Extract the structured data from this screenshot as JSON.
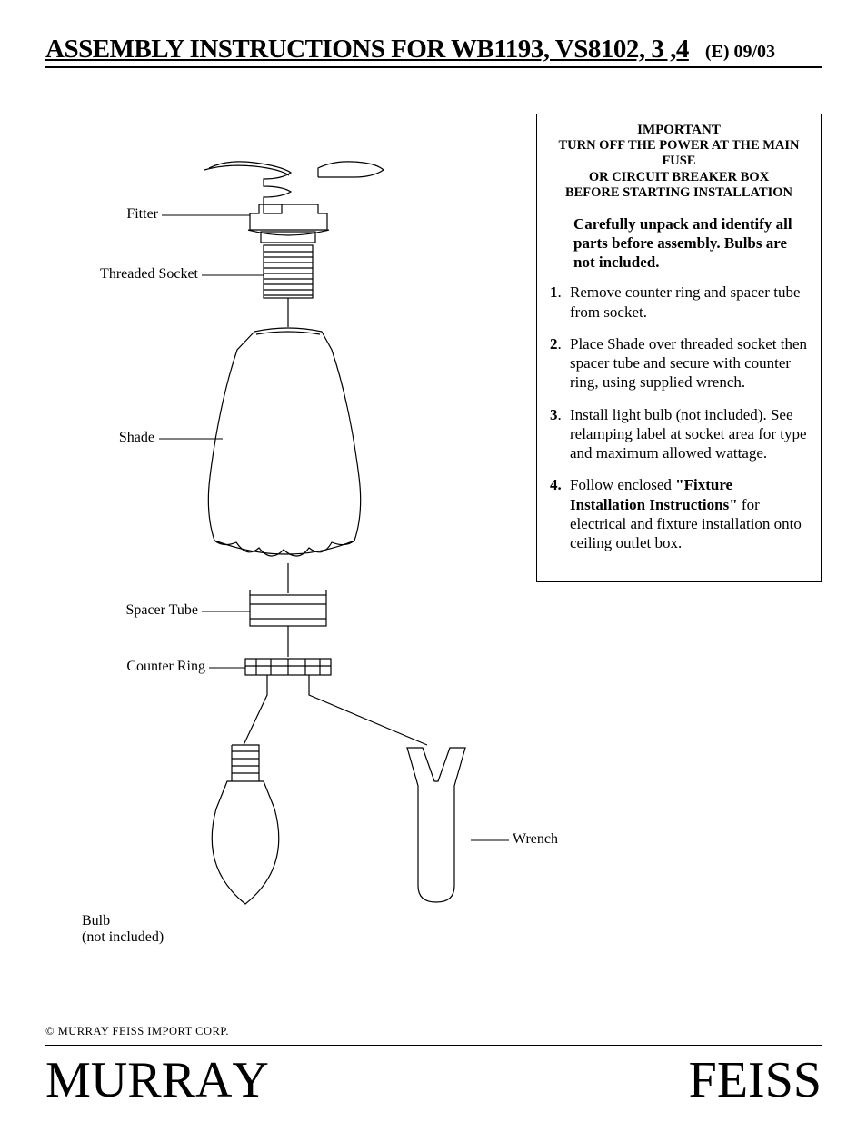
{
  "title": {
    "main": "ASSEMBLY INSTRUCTIONS FOR WB1193, VS8102, 3 ,4",
    "rev": "(E)  09/03"
  },
  "warning": {
    "important": "IMPORTANT",
    "line1": "TURN OFF THE POWER AT THE MAIN FUSE",
    "line2": "OR CIRCUIT BREAKER BOX",
    "line3": "BEFORE STARTING INSTALLATION"
  },
  "lead": "Carefully unpack and identify all parts before assembly. Bulbs are not included.",
  "steps": [
    {
      "n": "1",
      "punct": ".",
      "text": "Remove counter ring and spacer tube from socket."
    },
    {
      "n": "2",
      "punct": ".",
      "text": "Place Shade over threaded socket then spacer tube and secure with counter ring, using supplied wrench."
    },
    {
      "n": "3",
      "punct": ".",
      "text": "Install light bulb (not included). See relamping label at socket area for type and maximum allowed wattage."
    }
  ],
  "step4": {
    "n": "4",
    "punct": ".",
    "pre": "Follow enclosed ",
    "bold": "\"Fixture Installation Instructions\"",
    "post": " for electrical and fixture installation onto ceiling outlet box."
  },
  "parts": {
    "fitter": "Fitter",
    "socket": "Threaded Socket",
    "shade": "Shade",
    "spacer": "Spacer Tube",
    "ring": "Counter Ring",
    "bulb_l1": "Bulb",
    "bulb_l2": "(not included)",
    "wrench": "Wrench"
  },
  "copyright": "© MURRAY FEISS IMPORT CORP.",
  "brand": {
    "word1": "MURRAY",
    "word2": "FEISS"
  },
  "style": {
    "stroke": "#000000",
    "stroke_width": 1.2,
    "page_bg": "#ffffff",
    "diagram_col_width": 520,
    "diagram_col_height": 920
  }
}
